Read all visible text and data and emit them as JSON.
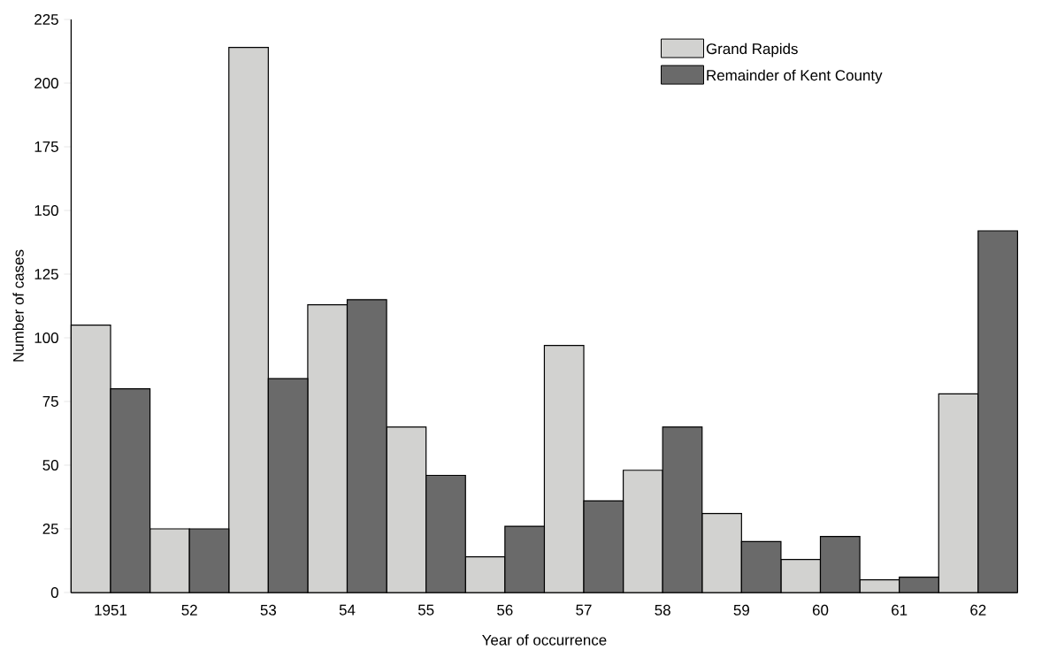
{
  "chart_data": {
    "type": "bar",
    "xlabel": "Year of occurrence",
    "ylabel": "Number of cases",
    "categories": [
      "1951",
      "52",
      "53",
      "54",
      "55",
      "56",
      "57",
      "58",
      "59",
      "60",
      "61",
      "62"
    ],
    "series": [
      {
        "name": "Grand Rapids",
        "color": "#d2d2d0",
        "values": [
          105,
          25,
          214,
          113,
          65,
          14,
          97,
          48,
          31,
          13,
          5,
          78
        ]
      },
      {
        "name": "Remainder of Kent County",
        "color": "#6a6a6a",
        "values": [
          80,
          25,
          84,
          115,
          46,
          26,
          36,
          65,
          20,
          22,
          6,
          142
        ]
      }
    ],
    "ylim": [
      0,
      225
    ],
    "yticks": [
      0,
      25,
      50,
      75,
      100,
      125,
      150,
      175,
      200,
      225
    ],
    "grid": false,
    "legend": "top right"
  }
}
